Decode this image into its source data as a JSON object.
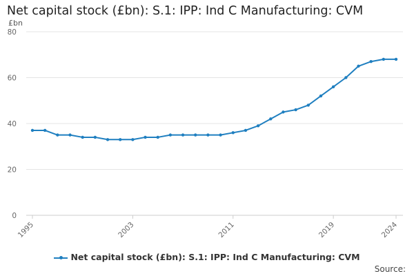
{
  "chart_data": {
    "type": "line",
    "title": "Net capital stock (£bn): S.1: IPP: Ind C Manufacturing: CVM",
    "ylabel": "£bn",
    "xlabel": "",
    "xlim": [
      1995,
      2024
    ],
    "ylim": [
      0,
      80
    ],
    "yticks": [
      0,
      20,
      40,
      60,
      80
    ],
    "xticks": [
      "1995",
      "2003",
      "2011",
      "2019",
      "2024"
    ],
    "grid": "horizontal",
    "legend_position": "bottom",
    "series": [
      {
        "name": "Net capital stock (£bn): S.1: IPP: Ind C Manufacturing: CVM",
        "color": "#1f7fc0",
        "x": [
          1995,
          1996,
          1997,
          1998,
          1999,
          2000,
          2001,
          2002,
          2003,
          2004,
          2005,
          2006,
          2007,
          2008,
          2009,
          2010,
          2011,
          2012,
          2013,
          2014,
          2015,
          2016,
          2017,
          2018,
          2019,
          2020,
          2021,
          2022,
          2023,
          2024
        ],
        "y": [
          37,
          37,
          35,
          35,
          34,
          34,
          33,
          33,
          33,
          34,
          34,
          35,
          35,
          35,
          35,
          35,
          36,
          37,
          39,
          42,
          45,
          46,
          48,
          52,
          56,
          60,
          65,
          67,
          68,
          68
        ]
      }
    ]
  },
  "source_label": "Source:"
}
